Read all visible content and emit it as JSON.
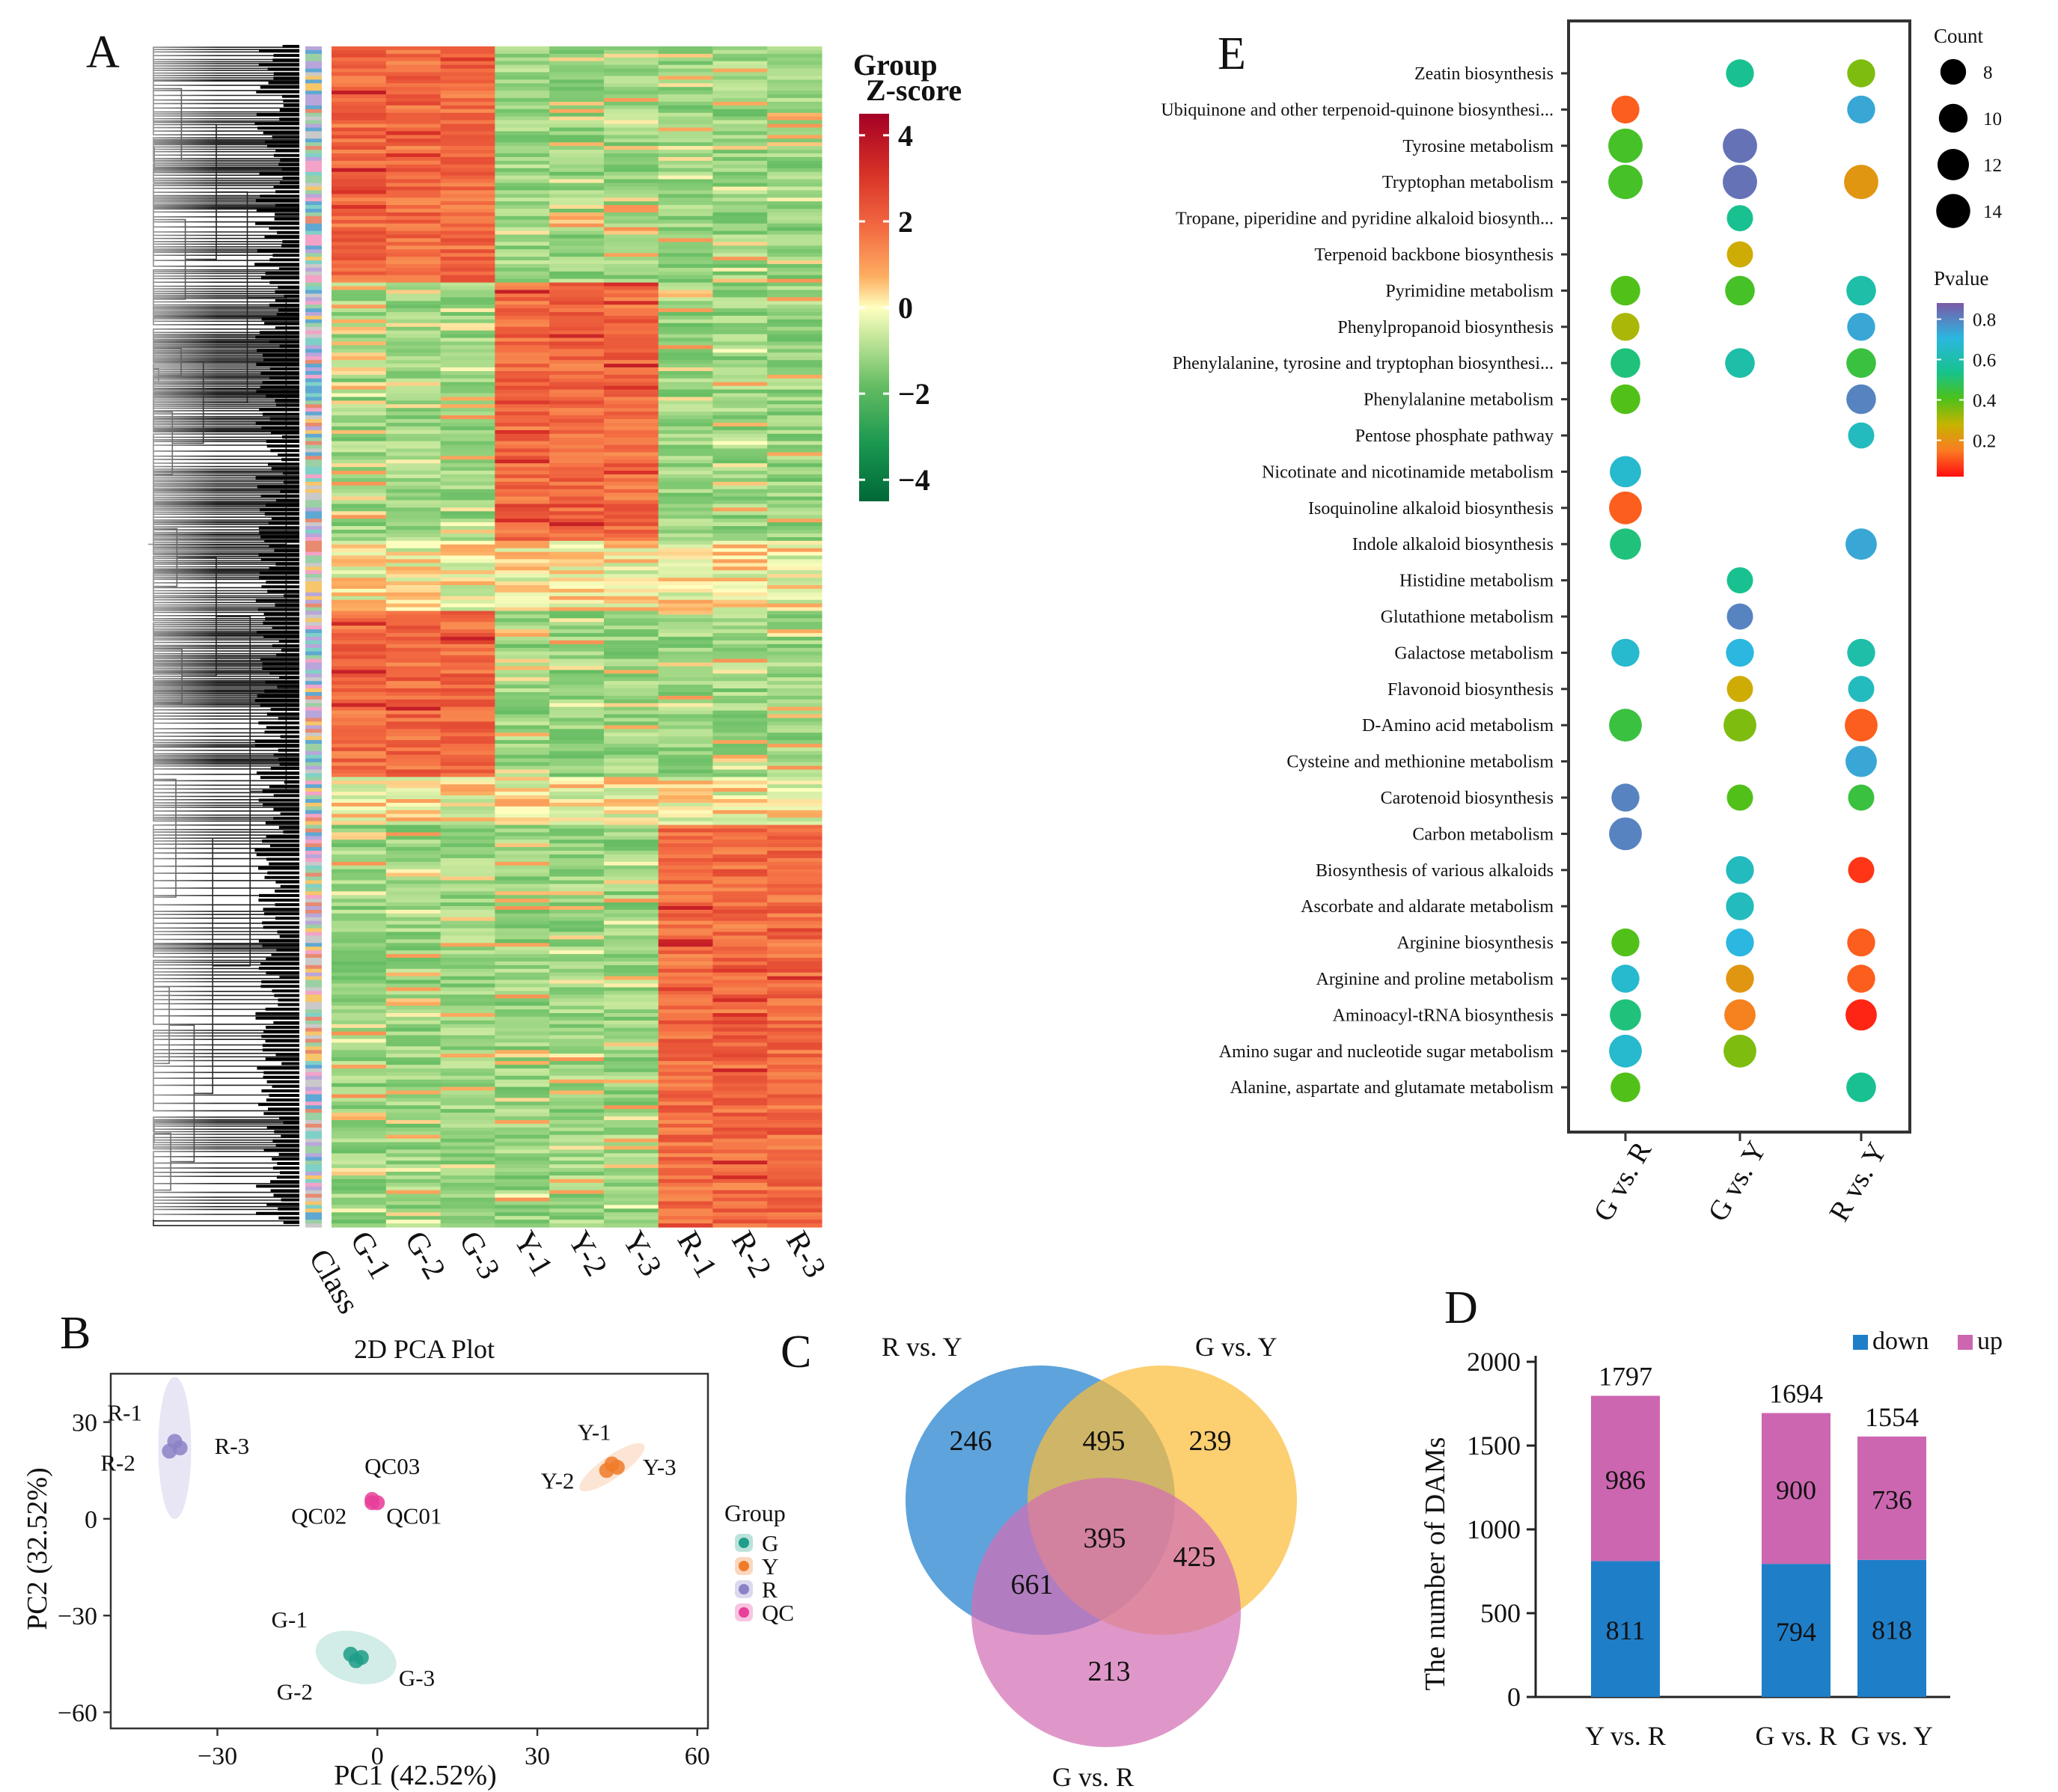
{
  "panels": {
    "A": "A",
    "B": "B",
    "C": "C",
    "D": "D",
    "E": "E"
  },
  "colors": {
    "G": "#1f9e89",
    "Y": "#f07c2a",
    "R": "#8c82c8",
    "QC": "#e8409a",
    "down": "#1f7ec8",
    "up": "#cc66b0",
    "vennBlue": "#3a8fd3",
    "vennYellow": "#fbbc3a",
    "vennPink": "#d26fb6"
  },
  "heatmap": {
    "columns": [
      "G-1",
      "G-2",
      "G-3",
      "Y-1",
      "Y-2",
      "Y-3",
      "R-1",
      "R-2",
      "R-3"
    ],
    "class_label": "Class",
    "group_rows": [
      {
        "high": "G",
        "frac": 0.2
      },
      {
        "high": "Y",
        "frac": 0.22
      },
      {
        "high": "none",
        "frac": 0.06
      },
      {
        "high": "G",
        "frac": 0.14
      },
      {
        "high": "none",
        "frac": 0.04
      },
      {
        "high": "R",
        "frac": 0.34
      }
    ],
    "legend": {
      "title1": "Group",
      "title2": "Z-score",
      "ticks": [
        4,
        2,
        0,
        -2,
        -4
      ],
      "tick_labels": [
        "4",
        "2",
        "0",
        "−2",
        "−4"
      ],
      "range": [
        -4.5,
        4.5
      ]
    }
  },
  "chart_data": [
    {
      "type": "scatter",
      "title": "2D PCA Plot",
      "xlabel": "PC1 (42.52%)",
      "ylabel": "PC2 (32.52%)",
      "xlim": [
        -50,
        62
      ],
      "ylim": [
        -65,
        45
      ],
      "xticks": [
        -30,
        0,
        30,
        60
      ],
      "xtick_labels": [
        "−30",
        "0",
        "30",
        "60"
      ],
      "yticks": [
        30,
        0,
        -30,
        -60
      ],
      "ytick_labels": [
        "30",
        "0",
        "−30",
        "−60"
      ],
      "legend": {
        "title": "Group",
        "entries": [
          "G",
          "Y",
          "R",
          "QC"
        ]
      },
      "points": [
        {
          "label": "R-1",
          "group": "R",
          "x": -38,
          "y": 24
        },
        {
          "label": "R-2",
          "group": "R",
          "x": -39,
          "y": 21
        },
        {
          "label": "R-3",
          "group": "R",
          "x": -37,
          "y": 22
        },
        {
          "label": "Y-1",
          "group": "Y",
          "x": 44,
          "y": 17
        },
        {
          "label": "Y-2",
          "group": "Y",
          "x": 43,
          "y": 15
        },
        {
          "label": "Y-3",
          "group": "Y",
          "x": 45,
          "y": 16
        },
        {
          "label": "QC03",
          "group": "QC",
          "x": -1,
          "y": 6
        },
        {
          "label": "QC02",
          "group": "QC",
          "x": -1,
          "y": 5
        },
        {
          "label": "QC01",
          "group": "QC",
          "x": 0,
          "y": 5
        },
        {
          "label": "G-1",
          "group": "G",
          "x": -5,
          "y": -42
        },
        {
          "label": "G-2",
          "group": "G",
          "x": -4,
          "y": -44
        },
        {
          "label": "G-3",
          "group": "G",
          "x": -3,
          "y": -43
        }
      ]
    },
    {
      "type": "venn",
      "sets": [
        "R vs. Y",
        "G vs. Y",
        "G vs. R"
      ],
      "regions": {
        "R_only": "246",
        "Y_only": "239",
        "GR_only": "213",
        "RY_GY": "495",
        "RY_GR": "661",
        "GY_GR": "425",
        "all": "395"
      }
    },
    {
      "type": "bar",
      "stacked": true,
      "categories": [
        "Y vs. R",
        "G vs. R",
        "G vs. Y"
      ],
      "series": [
        {
          "name": "down",
          "values": [
            811,
            794,
            818
          ]
        },
        {
          "name": "up",
          "values": [
            986,
            900,
            736
          ]
        }
      ],
      "totals": [
        1797,
        1694,
        1554
      ],
      "ylabel": "The number of DAMs",
      "ylim": [
        0,
        2000
      ],
      "yticks": [
        0,
        500,
        1000,
        1500,
        2000
      ],
      "ytick_labels": [
        "0",
        "500",
        "1000",
        "1500",
        "2000"
      ]
    },
    {
      "type": "scatter",
      "subtype": "bubble",
      "columns": [
        "G vs. R",
        "G vs. Y",
        "R vs. Y"
      ],
      "count_legend": {
        "title": "Count",
        "values": [
          8,
          10,
          12,
          14
        ],
        "labels": [
          "8",
          "10",
          "12",
          "14"
        ]
      },
      "pvalue_legend": {
        "title": "Pvalue",
        "ticks": [
          0.8,
          0.6,
          0.4,
          0.2
        ],
        "labels": [
          "0.8",
          "0.6",
          "0.4",
          "0.2"
        ],
        "range": [
          0.02,
          0.88
        ]
      },
      "pathways": [
        {
          "name": "Zeatin biosynthesis",
          "hl": false,
          "v": [
            null,
            {
              "c": 8,
              "p": 0.55
            },
            {
              "c": 8,
              "p": 0.35
            }
          ]
        },
        {
          "name": "Ubiquinone and other terpenoid-quinone biosynthesi...",
          "hl": false,
          "v": [
            {
              "c": 8,
              "p": 0.1
            },
            null,
            {
              "c": 8,
              "p": 0.75
            }
          ]
        },
        {
          "name": "Tyrosine metabolism",
          "hl": false,
          "v": [
            {
              "c": 12,
              "p": 0.42
            },
            {
              "c": 12,
              "p": 0.85
            },
            null
          ]
        },
        {
          "name": "Tryptophan metabolism",
          "hl": false,
          "v": [
            {
              "c": 12,
              "p": 0.42
            },
            {
              "c": 12,
              "p": 0.85
            },
            {
              "c": 12,
              "p": 0.2
            }
          ]
        },
        {
          "name": "Tropane, piperidine and pyridine alkaloid biosynth...",
          "hl": false,
          "v": [
            null,
            {
              "c": 7,
              "p": 0.55
            },
            null
          ]
        },
        {
          "name": "Terpenoid backbone biosynthesis",
          "hl": false,
          "v": [
            null,
            {
              "c": 7,
              "p": 0.25
            },
            null
          ]
        },
        {
          "name": "Pyrimidine metabolism",
          "hl": false,
          "v": [
            {
              "c": 9,
              "p": 0.4
            },
            {
              "c": 9,
              "p": 0.42
            },
            {
              "c": 9,
              "p": 0.6
            }
          ]
        },
        {
          "name": "Phenylpropanoid biosynthesis",
          "hl": false,
          "v": [
            {
              "c": 8,
              "p": 0.3
            },
            null,
            {
              "c": 8,
              "p": 0.75
            }
          ]
        },
        {
          "name": "Phenylalanine, tyrosine and tryptophan biosynthesi...",
          "hl": false,
          "v": [
            {
              "c": 9,
              "p": 0.52
            },
            {
              "c": 9,
              "p": 0.6
            },
            {
              "c": 9,
              "p": 0.45
            }
          ]
        },
        {
          "name": "Phenylalanine metabolism",
          "hl": false,
          "v": [
            {
              "c": 9,
              "p": 0.4
            },
            null,
            {
              "c": 9,
              "p": 0.82
            }
          ]
        },
        {
          "name": "Pentose phosphate pathway",
          "hl": false,
          "v": [
            null,
            null,
            {
              "c": 7,
              "p": 0.65
            }
          ]
        },
        {
          "name": "Nicotinate and nicotinamide metabolism",
          "hl": false,
          "v": [
            {
              "c": 10,
              "p": 0.68
            },
            null,
            null
          ]
        },
        {
          "name": "Isoquinoline alkaloid biosynthesis",
          "hl": false,
          "v": [
            {
              "c": 11,
              "p": 0.1
            },
            null,
            null
          ]
        },
        {
          "name": "Indole alkaloid biosynthesis",
          "hl": false,
          "v": [
            {
              "c": 10,
              "p": 0.52
            },
            null,
            {
              "c": 10,
              "p": 0.75
            }
          ]
        },
        {
          "name": "Histidine metabolism",
          "hl": false,
          "v": [
            null,
            {
              "c": 7,
              "p": 0.55
            },
            null
          ]
        },
        {
          "name": "Glutathione metabolism",
          "hl": false,
          "v": [
            null,
            {
              "c": 7,
              "p": 0.82
            },
            null
          ]
        },
        {
          "name": "Galactose metabolism",
          "hl": false,
          "v": [
            {
              "c": 8,
              "p": 0.68
            },
            {
              "c": 8,
              "p": 0.72
            },
            {
              "c": 8,
              "p": 0.6
            }
          ]
        },
        {
          "name": "Flavonoid biosynthesis",
          "hl": true,
          "v": [
            null,
            {
              "c": 7,
              "p": 0.25
            },
            {
              "c": 7,
              "p": 0.65
            }
          ]
        },
        {
          "name": "D-Amino acid metabolism",
          "hl": false,
          "v": [
            {
              "c": 11,
              "p": 0.45
            },
            {
              "c": 11,
              "p": 0.35
            },
            {
              "c": 11,
              "p": 0.1
            }
          ]
        },
        {
          "name": "Cysteine and methionine metabolism",
          "hl": false,
          "v": [
            null,
            null,
            {
              "c": 10,
              "p": 0.75
            }
          ]
        },
        {
          "name": "Carotenoid biosynthesis",
          "hl": true,
          "v": [
            {
              "c": 8,
              "p": 0.82
            },
            {
              "c": 7,
              "p": 0.4
            },
            {
              "c": 7,
              "p": 0.45
            }
          ]
        },
        {
          "name": "Carbon metabolism",
          "hl": false,
          "v": [
            {
              "c": 11,
              "p": 0.82
            },
            null,
            null
          ]
        },
        {
          "name": "Biosynthesis of various alkaloids",
          "hl": false,
          "v": [
            null,
            {
              "c": 8,
              "p": 0.65
            },
            {
              "c": 7,
              "p": 0.05
            }
          ]
        },
        {
          "name": "Ascorbate and aldarate metabolism",
          "hl": false,
          "v": [
            null,
            {
              "c": 8,
              "p": 0.65
            },
            null
          ]
        },
        {
          "name": "Arginine biosynthesis",
          "hl": false,
          "v": [
            {
              "c": 8,
              "p": 0.4
            },
            {
              "c": 8,
              "p": 0.72
            },
            {
              "c": 8,
              "p": 0.1
            }
          ]
        },
        {
          "name": "Arginine and proline metabolism",
          "hl": false,
          "v": [
            {
              "c": 8,
              "p": 0.68
            },
            {
              "c": 8,
              "p": 0.2
            },
            {
              "c": 8,
              "p": 0.1
            }
          ]
        },
        {
          "name": "Aminoacyl-tRNA biosynthesis",
          "hl": false,
          "v": [
            {
              "c": 10,
              "p": 0.52
            },
            {
              "c": 10,
              "p": 0.15
            },
            {
              "c": 10,
              "p": 0.03
            }
          ]
        },
        {
          "name": "Amino sugar and nucleotide sugar metabolism",
          "hl": false,
          "v": [
            {
              "c": 11,
              "p": 0.68
            },
            {
              "c": 11,
              "p": 0.35
            },
            null
          ]
        },
        {
          "name": "Alanine, aspartate and glutamate metabolism",
          "hl": false,
          "v": [
            {
              "c": 9,
              "p": 0.4
            },
            null,
            {
              "c": 9,
              "p": 0.55
            }
          ]
        }
      ]
    }
  ]
}
